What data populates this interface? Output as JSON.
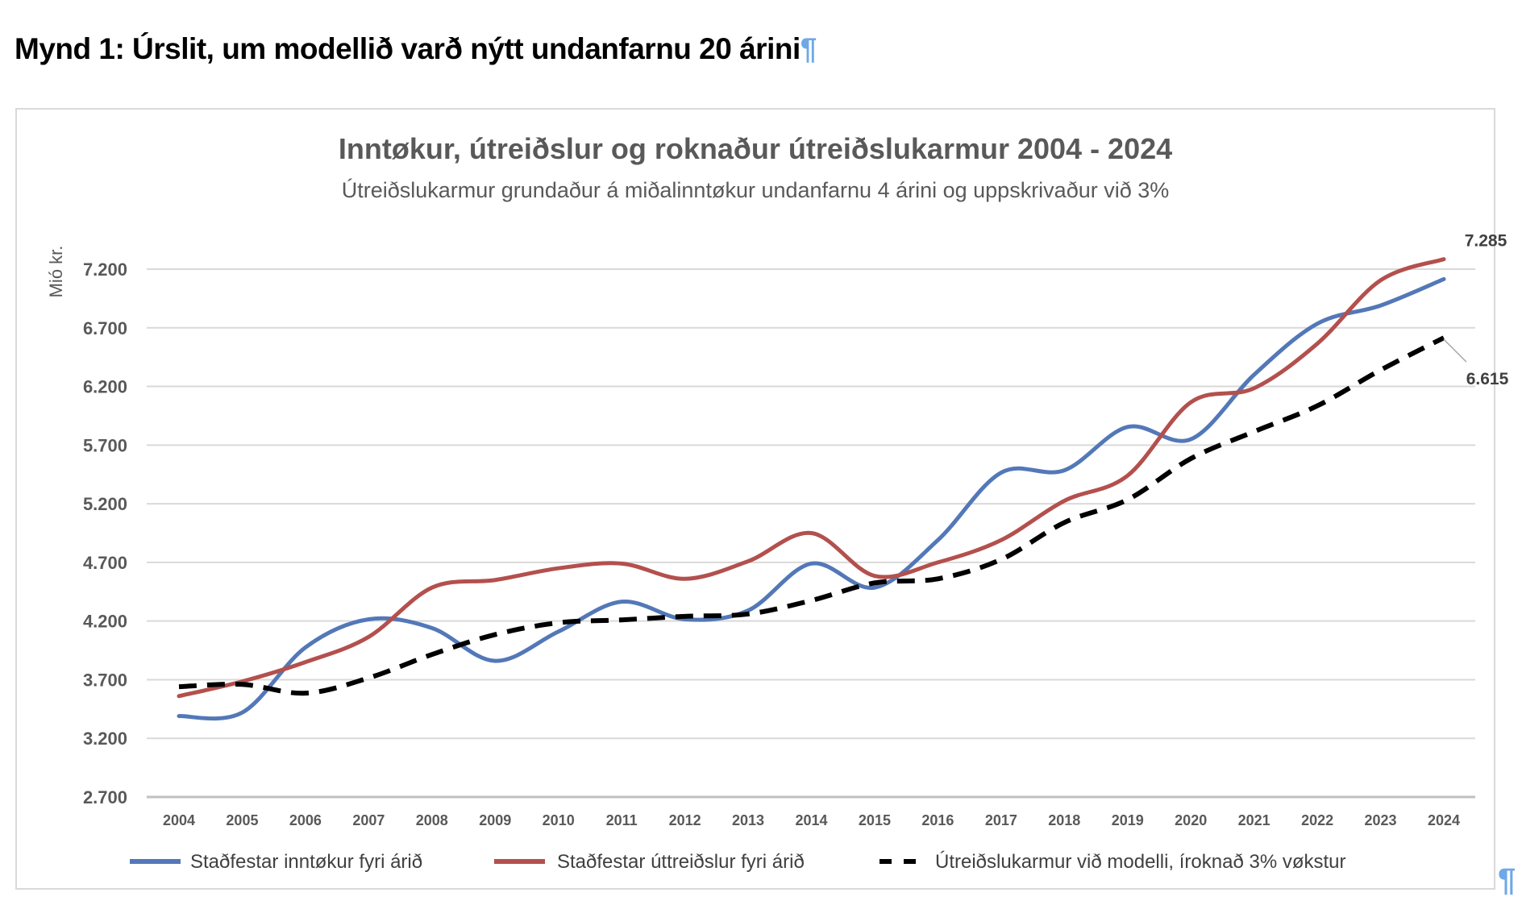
{
  "caption": {
    "text": "Mynd 1: Úrslit, um modellið varð nýtt undanfarnu 20 árini",
    "pilcrow": "¶"
  },
  "end_pilcrow": "¶",
  "chart_data": {
    "type": "line",
    "title": "Inntøkur, útreiðslur og roknaður útreiðslukarmur 2004 - 2024",
    "subtitle": "Útreiðslukarmur grundaður á miðalinntøkur undanfarnu 4 árini og uppskrivaður við 3%",
    "ylabel": "Mió kr.",
    "xlabel": "",
    "ylim": [
      2700,
      7200
    ],
    "yticks": [
      "2.700",
      "3.200",
      "3.700",
      "4.200",
      "4.700",
      "5.200",
      "5.700",
      "6.200",
      "6.700",
      "7.200"
    ],
    "grid": true,
    "legend": "bottom",
    "x": [
      "2004",
      "2005",
      "2006",
      "2007",
      "2008",
      "2009",
      "2010",
      "2011",
      "2012",
      "2013",
      "2014",
      "2015",
      "2016",
      "2017",
      "2018",
      "2019",
      "2020",
      "2021",
      "2022",
      "2023",
      "2024"
    ],
    "series": [
      {
        "name": "Staðfestar inntøkur fyri árið",
        "color": "#5378b8",
        "style": "solid",
        "values": [
          3390,
          3420,
          3975,
          4215,
          4140,
          3860,
          4110,
          4365,
          4215,
          4290,
          4690,
          4485,
          4890,
          5465,
          5485,
          5855,
          5750,
          6300,
          6735,
          6890,
          7115
        ]
      },
      {
        "name": "Staðfestar úttreiðslur fyri árið",
        "color": "#b3504d",
        "style": "solid",
        "values": [
          3560,
          3685,
          3850,
          4065,
          4485,
          4550,
          4650,
          4690,
          4560,
          4710,
          4950,
          4585,
          4700,
          4890,
          5225,
          5440,
          6065,
          6185,
          6565,
          7105,
          7285
        ]
      },
      {
        "name": "Útreiðslukarmur við modelli, íroknað 3% vøkstur",
        "color": "#000000",
        "style": "dashed",
        "values": [
          3640,
          3660,
          3585,
          3715,
          3915,
          4085,
          4185,
          4210,
          4240,
          4260,
          4375,
          4525,
          4560,
          4725,
          5040,
          5235,
          5585,
          5815,
          6035,
          6340,
          6615
        ]
      }
    ],
    "data_labels": [
      {
        "series": 1,
        "x": "2024",
        "text": "7.285"
      },
      {
        "series": 2,
        "x": "2024",
        "text": "6.615"
      }
    ]
  }
}
